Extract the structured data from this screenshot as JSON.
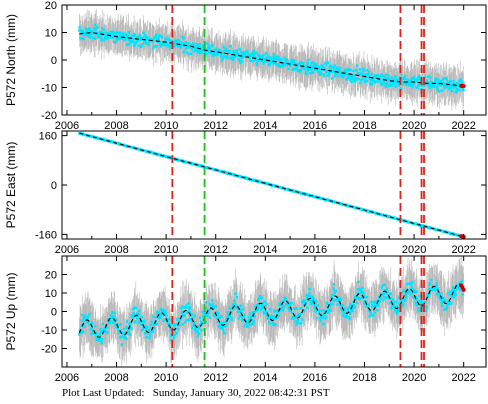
{
  "footer": {
    "label": "Plot Last Updated:",
    "timestamp": "Sunday, January 30, 2022 08:42:31 PST"
  },
  "colors": {
    "scatter": "#00e5ff",
    "error_bars": "#a9a9a9",
    "model_line": "#000000",
    "event_red": "#e0201b",
    "event_green": "#22bb22",
    "recent_points": "#cc0000"
  },
  "chart_data": [
    {
      "type": "scatter",
      "ylabel": "P572 North (mm)",
      "xlim": [
        2005.8,
        2022.9
      ],
      "ylim": [
        -20,
        20
      ],
      "x_ticks": [
        2006,
        2008,
        2010,
        2012,
        2014,
        2016,
        2018,
        2020,
        2022
      ],
      "y_ticks": [
        -20,
        -10,
        0,
        10,
        20
      ],
      "grid": false,
      "legend": "none",
      "model": {
        "x": [
          2006.5,
          2007.0,
          2008.0,
          2009.0,
          2010.0,
          2010.3,
          2011.0,
          2011.6,
          2012.0,
          2013.0,
          2014.0,
          2015.0,
          2016.0,
          2017.0,
          2018.0,
          2019.0,
          2019.5,
          2020.0,
          2020.5,
          2021.0,
          2021.5,
          2022.0
        ],
        "y": [
          9.5,
          10,
          8.5,
          7.5,
          6.5,
          6,
          5,
          3.5,
          3,
          1.5,
          0,
          -1.5,
          -3,
          -4.5,
          -6,
          -7.5,
          -8,
          -8,
          -8.5,
          -8.5,
          -9,
          -9.5
        ]
      },
      "scatter_range": [
        2006.5,
        2022.0
      ],
      "scatter_spread": 3,
      "error_spread": 6,
      "events_red": [
        2010.25,
        2019.45,
        2020.3,
        2020.4
      ],
      "events_green": [
        2011.55
      ]
    },
    {
      "type": "scatter",
      "ylabel": "P572 East (mm)",
      "xlim": [
        2005.8,
        2022.9
      ],
      "ylim": [
        -175,
        175
      ],
      "x_ticks": [
        2006,
        2008,
        2010,
        2012,
        2014,
        2016,
        2018,
        2020,
        2022
      ],
      "y_ticks": [
        -160,
        0,
        160
      ],
      "grid": false,
      "legend": "none",
      "model": {
        "x": [
          2006.5,
          2022.0
        ],
        "y": [
          168,
          -168
        ]
      },
      "scatter_range": [
        2006.5,
        2022.0
      ],
      "scatter_spread": 2,
      "error_spread": 3,
      "events_red": [
        2010.25,
        2019.45,
        2020.3,
        2020.4
      ],
      "events_green": [
        2011.55
      ]
    },
    {
      "type": "scatter",
      "ylabel": "P572 Up (mm)",
      "xlim": [
        2005.8,
        2022.9
      ],
      "ylim": [
        -30,
        30
      ],
      "x_ticks": [
        2006,
        2008,
        2010,
        2012,
        2014,
        2016,
        2018,
        2020,
        2022
      ],
      "y_ticks": [
        -20,
        -10,
        0,
        10,
        20
      ],
      "grid": false,
      "legend": "none",
      "model": {
        "type": "trend_annual",
        "start": 2006.5,
        "end": 2022.0,
        "offset_at_start": -10,
        "rate_per_year": 1.3,
        "amplitude": 5,
        "phase_year_fraction": 0.55
      },
      "scatter_range": [
        2006.5,
        2022.0
      ],
      "scatter_spread": 6,
      "error_spread": 12,
      "events_red": [
        2010.25,
        2019.45,
        2020.3,
        2020.4
      ],
      "events_green": [
        2011.55
      ]
    }
  ]
}
